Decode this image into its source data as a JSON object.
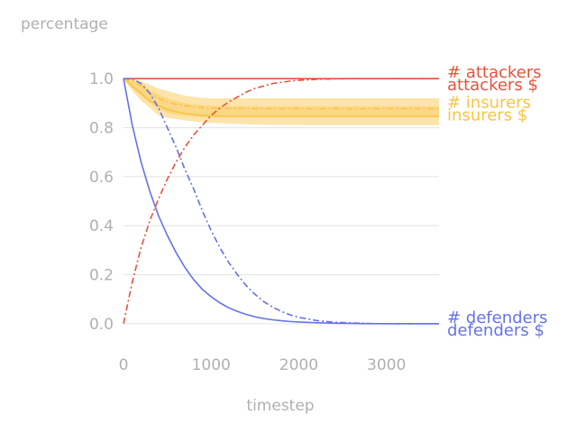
{
  "chart_data": {
    "type": "line",
    "xlabel": "timestep",
    "ylabel": "percentage",
    "xlim": [
      0,
      3600
    ],
    "ylim": [
      -0.1,
      1.1
    ],
    "x_ticks": [
      "0",
      "1000",
      "2000",
      "3000"
    ],
    "y_ticks": [
      "0.0",
      "0.2",
      "0.4",
      "0.6",
      "0.8",
      "1.0"
    ],
    "grid": "horizontal",
    "colors": {
      "attackers": "#e5533d",
      "insurers": "#f8c444",
      "defenders": "#6672e8",
      "grid": "#e6e6e6",
      "text": "#b0b0b0"
    },
    "x": [
      0,
      100,
      200,
      300,
      400,
      500,
      600,
      700,
      800,
      900,
      1000,
      1100,
      1200,
      1300,
      1400,
      1500,
      1600,
      1700,
      1800,
      1900,
      2000,
      2200,
      2400,
      2600,
      2800,
      3000,
      3200,
      3400,
      3600
    ],
    "series": [
      {
        "name": "# attackers",
        "group": "attackers",
        "style": "solid",
        "values": [
          1,
          1,
          1,
          1,
          1,
          1,
          1,
          1,
          1,
          1,
          1,
          1,
          1,
          1,
          1,
          1,
          1,
          1,
          1,
          1,
          1,
          1,
          1,
          1,
          1,
          1,
          1,
          1,
          1
        ]
      },
      {
        "name": "attackers $",
        "group": "attackers",
        "style": "dashdot",
        "values": [
          0,
          0.17,
          0.31,
          0.42,
          0.51,
          0.59,
          0.66,
          0.72,
          0.77,
          0.81,
          0.85,
          0.88,
          0.905,
          0.925,
          0.945,
          0.96,
          0.97,
          0.98,
          0.985,
          0.99,
          0.993,
          0.997,
          0.999,
          1,
          1,
          1,
          1,
          1,
          1
        ]
      },
      {
        "name": "# insurers",
        "group": "insurers",
        "style": "dashdot",
        "values": [
          1,
          0.99,
          0.97,
          0.94,
          0.92,
          0.905,
          0.895,
          0.89,
          0.885,
          0.882,
          0.88,
          0.879,
          0.878,
          0.878,
          0.878,
          0.877,
          0.877,
          0.877,
          0.877,
          0.877,
          0.877,
          0.877,
          0.877,
          0.877,
          0.877,
          0.877,
          0.877,
          0.877,
          0.877
        ]
      },
      {
        "name": "insurers $",
        "group": "insurers",
        "style": "solid",
        "values": [
          1,
          0.97,
          0.94,
          0.91,
          0.89,
          0.875,
          0.865,
          0.858,
          0.853,
          0.85,
          0.848,
          0.847,
          0.846,
          0.846,
          0.846,
          0.846,
          0.846,
          0.846,
          0.846,
          0.846,
          0.846,
          0.846,
          0.846,
          0.846,
          0.846,
          0.846,
          0.846,
          0.846,
          0.846
        ]
      },
      {
        "name": "# defenders",
        "group": "defenders",
        "style": "dashdot",
        "values": [
          1,
          1,
          0.98,
          0.94,
          0.88,
          0.8,
          0.72,
          0.63,
          0.55,
          0.46,
          0.38,
          0.31,
          0.25,
          0.2,
          0.155,
          0.12,
          0.09,
          0.068,
          0.05,
          0.036,
          0.026,
          0.013,
          0.006,
          0.003,
          0.001,
          0,
          0,
          0,
          0
        ]
      },
      {
        "name": "defenders $",
        "group": "defenders",
        "style": "solid",
        "values": [
          1,
          0.81,
          0.66,
          0.54,
          0.44,
          0.36,
          0.29,
          0.23,
          0.18,
          0.14,
          0.11,
          0.085,
          0.065,
          0.05,
          0.038,
          0.028,
          0.021,
          0.016,
          0.012,
          0.009,
          0.007,
          0.004,
          0.002,
          0.001,
          0,
          0,
          0,
          0,
          0
        ]
      }
    ],
    "bands": [
      {
        "series": "insurers",
        "outer": true,
        "lower": [
          1,
          0.95,
          0.91,
          0.88,
          0.85,
          0.84,
          0.835,
          0.83,
          0.825,
          0.822,
          0.82,
          0.818,
          0.816,
          0.815,
          0.814,
          0.813,
          0.812,
          0.812,
          0.811,
          0.811,
          0.811,
          0.81,
          0.81,
          0.81,
          0.81,
          0.81,
          0.81,
          0.81,
          0.81
        ],
        "upper": [
          1,
          1,
          0.99,
          0.975,
          0.96,
          0.95,
          0.94,
          0.93,
          0.925,
          0.922,
          0.92,
          0.92,
          0.92,
          0.92,
          0.92,
          0.92,
          0.92,
          0.92,
          0.92,
          0.92,
          0.92,
          0.92,
          0.92,
          0.92,
          0.92,
          0.92,
          0.92,
          0.92,
          0.92
        ]
      },
      {
        "series": "insurers",
        "outer": false,
        "lower": [
          1,
          0.96,
          0.93,
          0.9,
          0.875,
          0.86,
          0.853,
          0.848,
          0.845,
          0.843,
          0.842,
          0.842,
          0.842,
          0.842,
          0.842,
          0.842,
          0.842,
          0.842,
          0.842,
          0.842,
          0.842,
          0.842,
          0.842,
          0.842,
          0.842,
          0.842,
          0.842,
          0.842,
          0.842
        ],
        "upper": [
          1,
          0.995,
          0.98,
          0.955,
          0.935,
          0.92,
          0.91,
          0.9,
          0.895,
          0.892,
          0.89,
          0.889,
          0.888,
          0.888,
          0.888,
          0.888,
          0.888,
          0.888,
          0.888,
          0.888,
          0.888,
          0.888,
          0.888,
          0.888,
          0.888,
          0.888,
          0.888,
          0.888,
          0.888
        ]
      }
    ]
  }
}
